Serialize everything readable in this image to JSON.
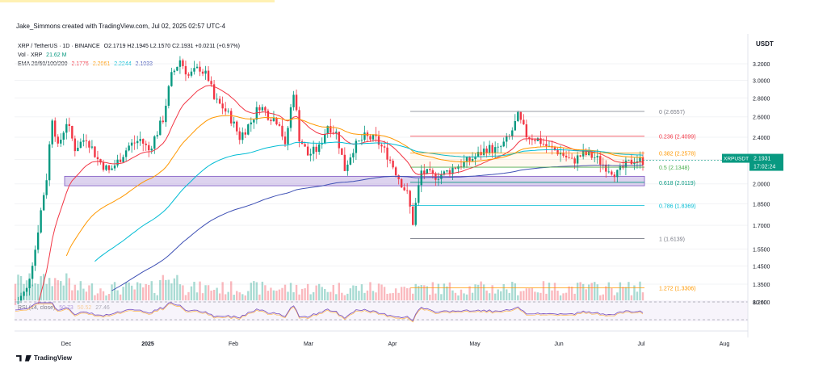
{
  "header": {
    "caption": "Jake_Simmons created with TradingView.com, Jul 02, 2025 02:57 UTC-4",
    "currency": "USDT"
  },
  "legend": {
    "symbol": "XRP / TetherUS · 1D · BINANCE",
    "ohlc": "O2.1719  H2.1945  L2.1570  C2.1931  +0.0211 (+0.97%)",
    "vol_label": "Vol · XRP",
    "vol_value": "21.62 M",
    "ema_label": "EMA 20/50/100/200",
    "ema_values": [
      "2.1776",
      "2.2061",
      "2.2244",
      "2.1033"
    ],
    "ema_colors": [
      "#f23645",
      "#ff9800",
      "#00bcd4",
      "#3f51b5"
    ],
    "rsi_label": "RSI (14, close)",
    "rsi_values": [
      "50.73",
      "50.52",
      "27.46"
    ]
  },
  "price_tag": {
    "symbol": "XRPUSDT",
    "price": "2.1931",
    "countdown": "17:02:24",
    "color": "#089981"
  },
  "footer": {
    "brand": "TradingView"
  },
  "chart_data": {
    "type": "candlestick",
    "timeframe": "1D",
    "ylim": [
      1.16,
      3.42
    ],
    "y_ticks": [
      "3.2000",
      "3.0000",
      "2.8000",
      "2.6000",
      "2.4000",
      "2.2000",
      "2.0000",
      "1.8500",
      "1.7000",
      "1.5500",
      "1.4500",
      "1.3500",
      "1.2600"
    ],
    "x_ticks": [
      "Dec",
      "2025",
      "Feb",
      "Mar",
      "Apr",
      "May",
      "Jun",
      "Jul",
      "Aug"
    ],
    "fib_levels": [
      {
        "label": "0 (2.6557)",
        "value": 2.6557,
        "color": "#787b86"
      },
      {
        "label": "0.236 (2.4099)",
        "value": 2.4099,
        "color": "#f23645"
      },
      {
        "label": "0.382 (2.2578)",
        "value": 2.2578,
        "color": "#ff9800"
      },
      {
        "label": "0.5 (2.1348)",
        "value": 2.1348,
        "color": "#4caf50"
      },
      {
        "label": "0.618 (2.0119)",
        "value": 2.0119,
        "color": "#089981"
      },
      {
        "label": "0.786 (1.8369)",
        "value": 1.8369,
        "color": "#00bcd4"
      },
      {
        "label": "1 (1.6139)",
        "value": 1.6139,
        "color": "#787b86"
      },
      {
        "label": "1.272 (1.3306)",
        "value": 1.3306,
        "color": "#ff9800"
      }
    ],
    "support_zone": [
      1.985,
      2.06
    ],
    "rsi_reference": "80.00",
    "rsi_last": 50.73
  }
}
